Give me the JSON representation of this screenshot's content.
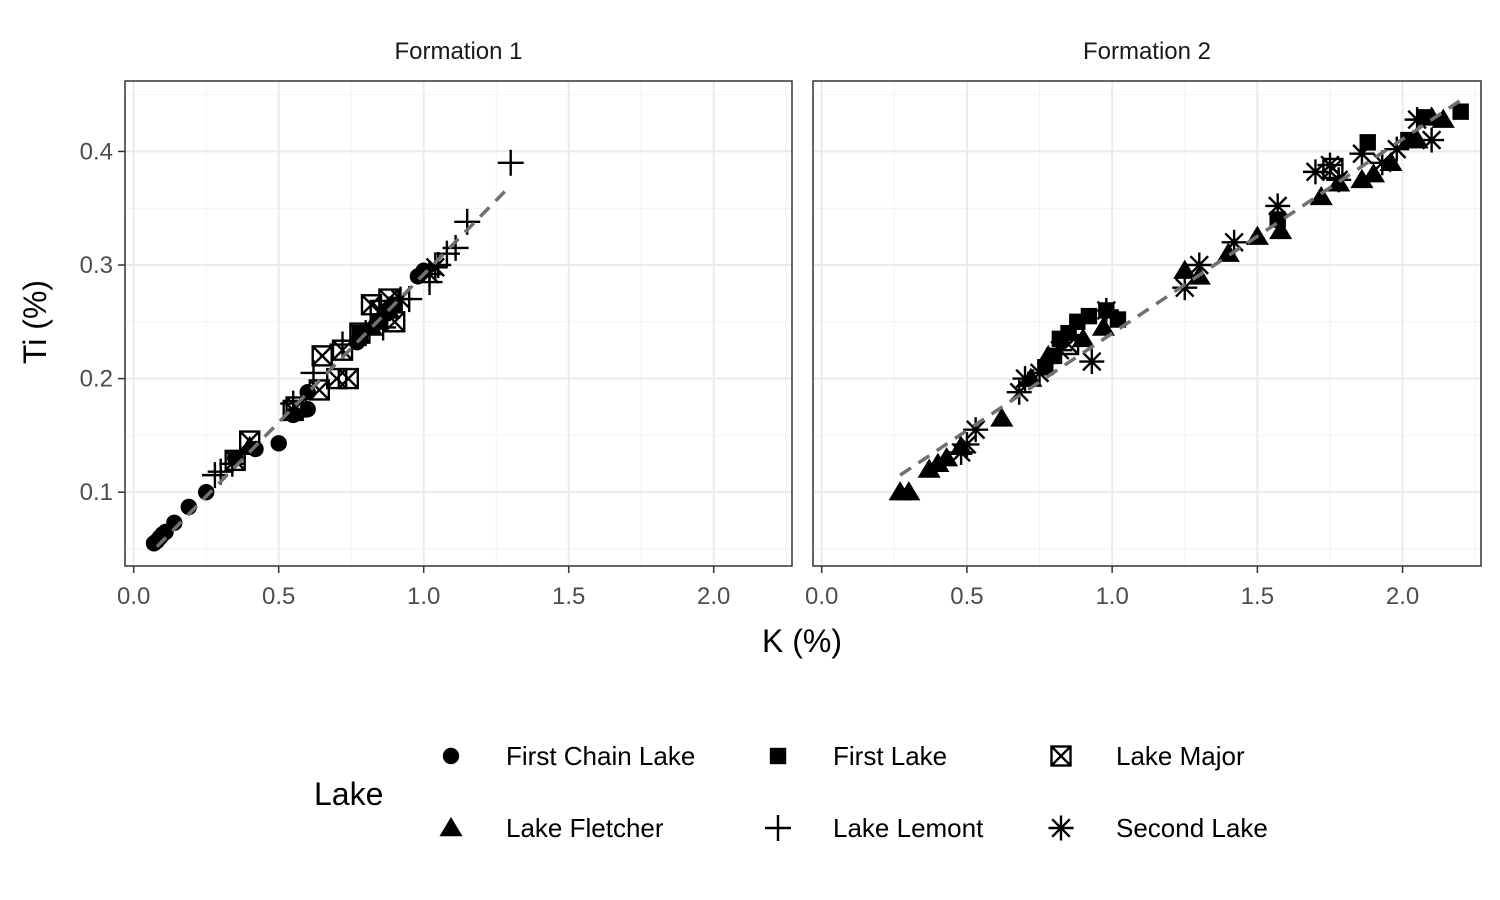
{
  "chart_data": {
    "type": "scatter",
    "xlabel": "K (%)",
    "ylabel": "Ti (%)",
    "xlim": [
      -0.03,
      2.27
    ],
    "ylim": [
      0.035,
      0.462
    ],
    "x_ticks": [
      0.0,
      0.5,
      1.0,
      1.5,
      2.0
    ],
    "x_tick_labels": [
      "0.0",
      "0.5",
      "1.0",
      "1.5",
      "2.0"
    ],
    "y_ticks": [
      0.1,
      0.2,
      0.3,
      0.4
    ],
    "y_tick_labels": [
      "0.1",
      "0.2",
      "0.3",
      "0.4"
    ],
    "grid": true,
    "legend": {
      "title": "Lake",
      "position": "bottom",
      "entries": [
        {
          "label": "First Chain Lake",
          "shape": "circle"
        },
        {
          "label": "First Lake",
          "shape": "square"
        },
        {
          "label": "Lake Major",
          "shape": "boxed-x"
        },
        {
          "label": "Lake Fletcher",
          "shape": "triangle"
        },
        {
          "label": "Lake Lemont",
          "shape": "plus"
        },
        {
          "label": "Second Lake",
          "shape": "asterisk"
        }
      ]
    },
    "panels": [
      {
        "title": "Formation 1",
        "fit_line": [
          [
            0.08,
            0.052
          ],
          [
            1.3,
            0.37
          ]
        ],
        "series": [
          {
            "name": "First Chain Lake",
            "points": [
              [
                0.07,
                0.055
              ],
              [
                0.08,
                0.057
              ],
              [
                0.09,
                0.06
              ],
              [
                0.1,
                0.063
              ],
              [
                0.11,
                0.065
              ],
              [
                0.14,
                0.073
              ],
              [
                0.19,
                0.087
              ],
              [
                0.25,
                0.1
              ],
              [
                0.35,
                0.13
              ],
              [
                0.42,
                0.138
              ],
              [
                0.5,
                0.143
              ],
              [
                0.55,
                0.168
              ],
              [
                0.6,
                0.173
              ],
              [
                0.6,
                0.188
              ],
              [
                0.77,
                0.232
              ],
              [
                0.98,
                0.29
              ],
              [
                1.0,
                0.295
              ]
            ]
          },
          {
            "name": "Lake Major",
            "points": [
              [
                0.35,
                0.128
              ],
              [
                0.4,
                0.145
              ],
              [
                0.55,
                0.172
              ],
              [
                0.56,
                0.175
              ],
              [
                0.64,
                0.19
              ],
              [
                0.65,
                0.22
              ],
              [
                0.7,
                0.2
              ],
              [
                0.74,
                0.2
              ],
              [
                0.72,
                0.225
              ],
              [
                0.78,
                0.24
              ],
              [
                0.82,
                0.265
              ],
              [
                0.85,
                0.26
              ],
              [
                0.9,
                0.25
              ],
              [
                0.88,
                0.27
              ]
            ]
          },
          {
            "name": "Lake Lemont",
            "points": [
              [
                0.28,
                0.115
              ],
              [
                0.3,
                0.118
              ],
              [
                0.34,
                0.125
              ],
              [
                0.55,
                0.178
              ],
              [
                0.62,
                0.205
              ],
              [
                0.72,
                0.23
              ],
              [
                0.8,
                0.24
              ],
              [
                0.86,
                0.245
              ],
              [
                0.95,
                0.27
              ],
              [
                1.02,
                0.285
              ],
              [
                1.05,
                0.3
              ],
              [
                1.08,
                0.31
              ],
              [
                1.11,
                0.315
              ],
              [
                1.15,
                0.338
              ],
              [
                1.3,
                0.39
              ]
            ]
          },
          {
            "name": "Lake Fletcher",
            "points": [
              [
                0.4,
                0.14
              ],
              [
                0.82,
                0.245
              ],
              [
                0.88,
                0.26
              ]
            ]
          },
          {
            "name": "First Lake",
            "points": [
              [
                0.78,
                0.24
              ],
              [
                0.85,
                0.25
              ],
              [
                0.9,
                0.265
              ]
            ]
          },
          {
            "name": "Second Lake",
            "points": [
              [
                0.92,
                0.27
              ],
              [
                1.02,
                0.292
              ],
              [
                1.04,
                0.298
              ]
            ]
          }
        ]
      },
      {
        "title": "Formation 2",
        "fit_line": [
          [
            0.27,
            0.115
          ],
          [
            2.2,
            0.445
          ]
        ],
        "series": [
          {
            "name": "Lake Fletcher",
            "points": [
              [
                0.27,
                0.1
              ],
              [
                0.3,
                0.1
              ],
              [
                0.37,
                0.12
              ],
              [
                0.4,
                0.125
              ],
              [
                0.43,
                0.13
              ],
              [
                0.48,
                0.14
              ],
              [
                0.62,
                0.165
              ],
              [
                0.72,
                0.2
              ],
              [
                0.78,
                0.22
              ],
              [
                0.9,
                0.235
              ],
              [
                0.97,
                0.245
              ],
              [
                1.25,
                0.295
              ],
              [
                1.3,
                0.29
              ],
              [
                1.4,
                0.31
              ],
              [
                1.5,
                0.325
              ],
              [
                1.58,
                0.33
              ],
              [
                1.72,
                0.36
              ],
              [
                1.78,
                0.372
              ],
              [
                1.86,
                0.375
              ],
              [
                1.9,
                0.38
              ],
              [
                1.96,
                0.39
              ],
              [
                2.05,
                0.41
              ],
              [
                2.1,
                0.43
              ],
              [
                2.14,
                0.428
              ]
            ]
          },
          {
            "name": "First Lake",
            "points": [
              [
                0.77,
                0.21
              ],
              [
                0.8,
                0.22
              ],
              [
                0.82,
                0.235
              ],
              [
                0.85,
                0.24
              ],
              [
                0.88,
                0.25
              ],
              [
                0.92,
                0.255
              ],
              [
                0.98,
                0.26
              ],
              [
                1.02,
                0.252
              ],
              [
                1.57,
                0.34
              ],
              [
                1.88,
                0.408
              ],
              [
                2.02,
                0.41
              ],
              [
                2.08,
                0.43
              ],
              [
                2.2,
                0.435
              ]
            ]
          },
          {
            "name": "Second Lake",
            "points": [
              [
                0.48,
                0.135
              ],
              [
                0.5,
                0.142
              ],
              [
                0.53,
                0.155
              ],
              [
                0.68,
                0.188
              ],
              [
                0.7,
                0.2
              ],
              [
                0.75,
                0.205
              ],
              [
                0.82,
                0.225
              ],
              [
                0.93,
                0.215
              ],
              [
                0.98,
                0.26
              ],
              [
                1.25,
                0.28
              ],
              [
                1.3,
                0.3
              ],
              [
                1.42,
                0.32
              ],
              [
                1.57,
                0.352
              ],
              [
                1.7,
                0.382
              ],
              [
                1.75,
                0.388
              ],
              [
                1.78,
                0.375
              ],
              [
                1.86,
                0.398
              ],
              [
                1.93,
                0.39
              ],
              [
                1.98,
                0.402
              ],
              [
                2.05,
                0.428
              ],
              [
                2.1,
                0.41
              ]
            ]
          },
          {
            "name": "Lake Major",
            "points": [
              [
                0.85,
                0.23
              ],
              [
                1.76,
                0.385
              ]
            ]
          }
        ]
      }
    ]
  }
}
